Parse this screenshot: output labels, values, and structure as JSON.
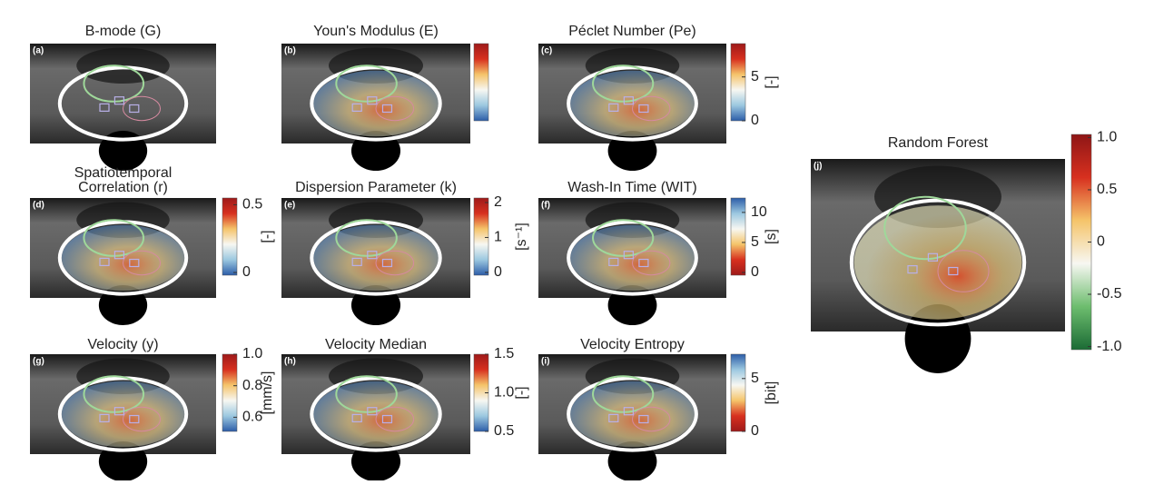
{
  "panels": [
    {
      "letter": "(a)",
      "title": [
        "B-mode (G)"
      ]
    },
    {
      "letter": "(b)",
      "title": [
        "Youn's Modulus (E)"
      ],
      "colorbar": {
        "range": [
          0,
          1
        ],
        "ticks": [],
        "colors": [
          "#2c5da8",
          "#9cc8e0",
          "#f7f7f2",
          "#f5c46a",
          "#d7301f",
          "#9e1a1a"
        ]
      }
    },
    {
      "letter": "(c)",
      "title": [
        "Péclet Number (Pe)"
      ],
      "colorbar": {
        "range": [
          0,
          8.8
        ],
        "ticks": [
          0,
          5
        ],
        "unit": "[-]",
        "colors": [
          "#2c5da8",
          "#9cc8e0",
          "#f7f7f2",
          "#f5c46a",
          "#d7301f",
          "#9e1a1a"
        ]
      }
    },
    {
      "letter": "(d)",
      "title": [
        "Spatiotemporal",
        "Correlation (r)"
      ],
      "colorbar": {
        "range": [
          -0.02,
          0.55
        ],
        "ticks": [
          0,
          0.5
        ],
        "unit": "[-]",
        "colors": [
          "#2c5da8",
          "#9cc8e0",
          "#f7f7f2",
          "#f5c46a",
          "#d7301f",
          "#9e1a1a"
        ]
      }
    },
    {
      "letter": "(e)",
      "title": [
        "Dispersion Parameter (k)"
      ],
      "colorbar": {
        "range": [
          -0.08,
          2.13
        ],
        "ticks": [
          0,
          1,
          2
        ],
        "unit": "[s⁻¹]",
        "colors": [
          "#2c5da8",
          "#9cc8e0",
          "#f7f7f2",
          "#f5c46a",
          "#d7301f",
          "#9e1a1a"
        ]
      }
    },
    {
      "letter": "(f)",
      "title": [
        "Wash-In Time (WIT)"
      ],
      "colorbar": {
        "range": [
          -0.45,
          12.4
        ],
        "ticks": [
          0,
          5,
          10
        ],
        "unit": "[s]",
        "colors": [
          "#9e1a1a",
          "#d7301f",
          "#f5c46a",
          "#f7f7f2",
          "#9cc8e0",
          "#2c5da8"
        ]
      }
    },
    {
      "letter": "(g)",
      "title": [
        "Velocity (y)"
      ],
      "colorbar": {
        "range": [
          0.51,
          1.0
        ],
        "ticks": [
          0.6,
          0.8,
          {
            "value": 1,
            "label": "1.0"
          }
        ],
        "unit": "[mm/s]",
        "colors": [
          "#2c5da8",
          "#9cc8e0",
          "#f7f7f2",
          "#f5c46a",
          "#d7301f",
          "#9e1a1a"
        ]
      }
    },
    {
      "letter": "(h)",
      "title": [
        "Velocity Median"
      ],
      "colorbar": {
        "range": [
          0.5,
          1.5
        ],
        "ticks": [
          0.5,
          {
            "value": 1,
            "label": "1.0"
          },
          1.5
        ],
        "unit": "[-]",
        "colors": [
          "#2c5da8",
          "#9cc8e0",
          "#f7f7f2",
          "#f5c46a",
          "#d7301f",
          "#9e1a1a"
        ]
      }
    },
    {
      "letter": "(i)",
      "title": [
        "Velocity Entropy"
      ],
      "colorbar": {
        "range": [
          0,
          7.3
        ],
        "ticks": [
          0,
          5
        ],
        "unit": "[bit]",
        "colors": [
          "#9e1a1a",
          "#d7301f",
          "#f5c46a",
          "#f7f7f2",
          "#9cc8e0",
          "#2c5da8"
        ]
      }
    },
    {
      "letter": "(j)",
      "title": [
        "Random Forest"
      ],
      "colorbar": {
        "range": [
          -1.03,
          1.03
        ],
        "ticks": [
          {
            "value": -1,
            "label": "-1.0"
          },
          -0.5,
          0,
          0.5,
          {
            "value": 1,
            "label": "1.0"
          }
        ],
        "colors": [
          "#1b6b35",
          "#6dbd6e",
          "#f7f7f2",
          "#f5c46a",
          "#d7301f",
          "#8e1616"
        ]
      }
    }
  ]
}
